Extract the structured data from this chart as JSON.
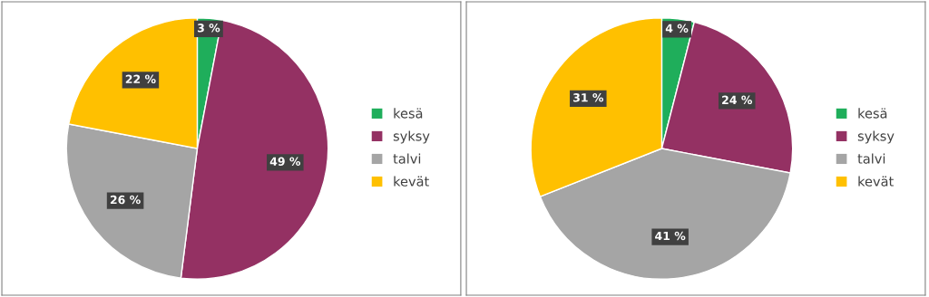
{
  "chart_data": [
    {
      "type": "pie",
      "categories": [
        "kesä",
        "syksy",
        "talvi",
        "kevät"
      ],
      "values": [
        3,
        49,
        26,
        22
      ],
      "colors": [
        "#1fae5b",
        "#943163",
        "#a5a5a5",
        "#ffc000"
      ],
      "value_labels": [
        "3 %",
        "49 %",
        "26 %",
        "22 %"
      ],
      "legend": "right"
    },
    {
      "type": "pie",
      "categories": [
        "kesä",
        "syksy",
        "talvi",
        "kevät"
      ],
      "values": [
        4,
        24,
        41,
        31
      ],
      "colors": [
        "#1fae5b",
        "#943163",
        "#a5a5a5",
        "#ffc000"
      ],
      "value_labels": [
        "4 %",
        "24 %",
        "41 %",
        "31 %"
      ],
      "legend": "right"
    }
  ]
}
